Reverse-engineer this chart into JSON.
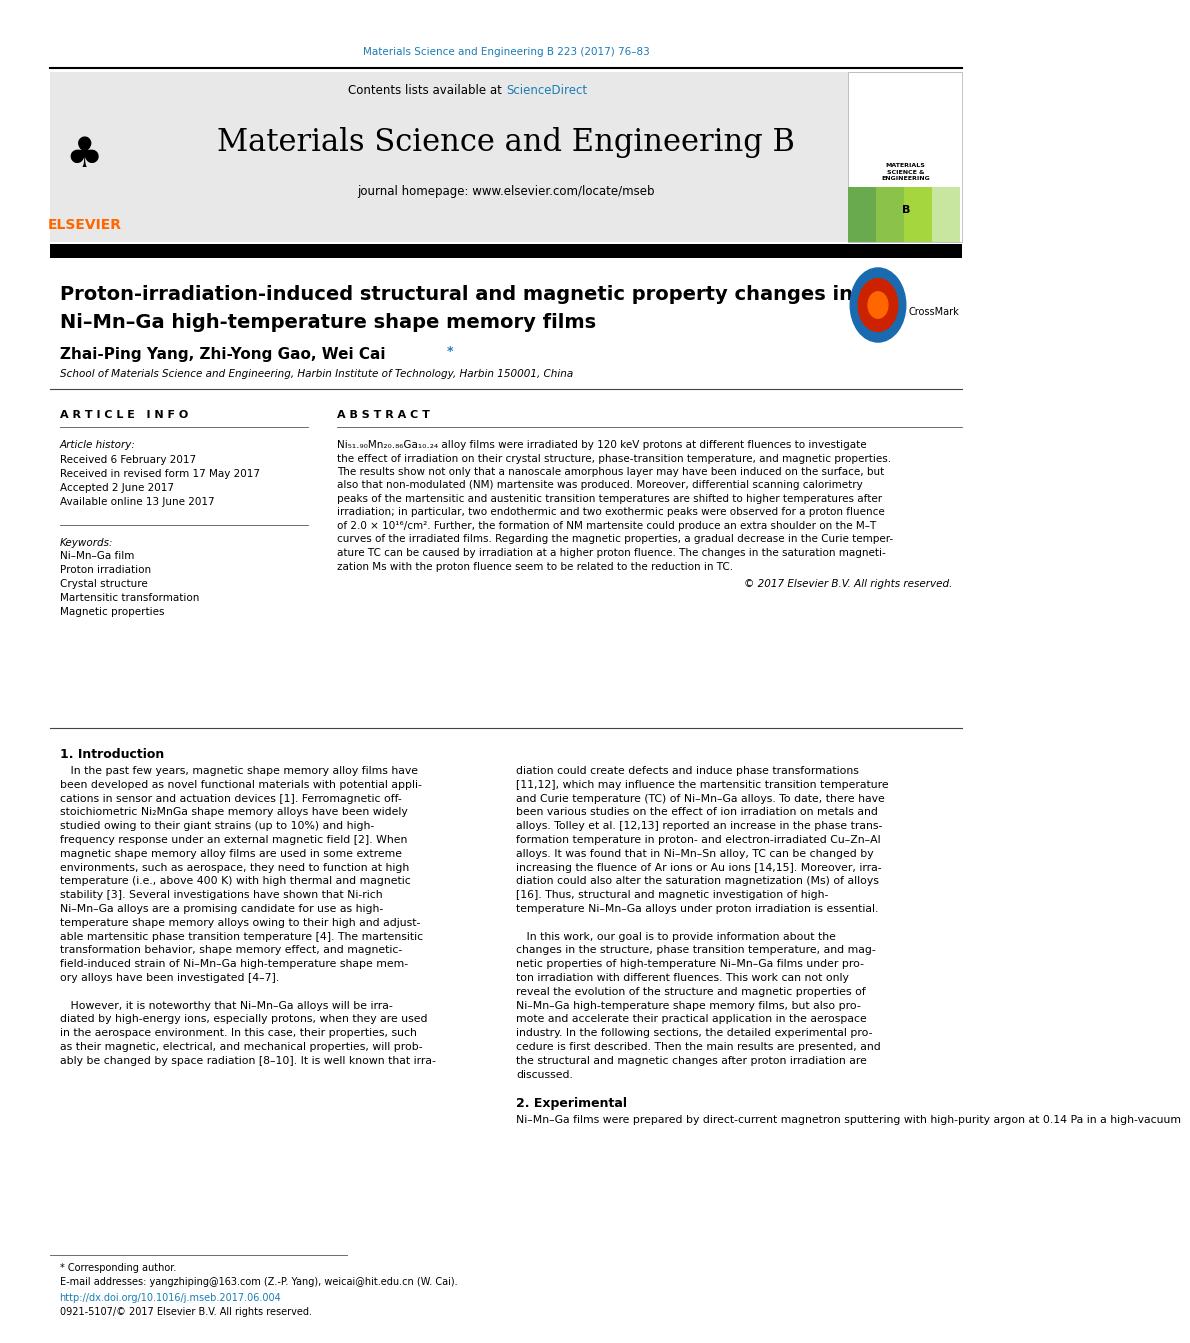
{
  "page_width": 9.92,
  "page_height": 13.23,
  "bg_color": "#ffffff",
  "top_link_text": "Materials Science and Engineering B 223 (2017) 76–83",
  "top_link_color": "#1a7db5",
  "contents_text": "Contents lists available at ",
  "sciencedirect_text": "ScienceDirect",
  "sciencedirect_color": "#1a7db5",
  "journal_name": "Materials Science and Engineering B",
  "journal_homepage": "journal homepage: www.elsevier.com/locate/mseb",
  "header_bg": "#e8e8e8",
  "paper_title_line1": "Proton-irradiation-induced structural and magnetic property changes in",
  "paper_title_line2": "Ni–Mn–Ga high-temperature shape memory films",
  "authors": "Zhai-Ping Yang, Zhi-Yong Gao, Wei Cai",
  "authors_star": "*",
  "affiliation": "School of Materials Science and Engineering, Harbin Institute of Technology, Harbin 150001, China",
  "article_info_header": "A R T I C L E   I N F O",
  "abstract_header": "A B S T R A C T",
  "article_history_label": "Article history:",
  "received_1": "Received 6 February 2017",
  "received_revised": "Received in revised form 17 May 2017",
  "accepted": "Accepted 2 June 2017",
  "available": "Available online 13 June 2017",
  "keywords_label": "Keywords:",
  "keywords": [
    "Ni–Mn–Ga film",
    "Proton irradiation",
    "Crystal structure",
    "Martensitic transformation",
    "Magnetic properties"
  ],
  "abstract_text": "Ni51.90Mn20.86Ga10.24 alloy films were irradiated by 120 keV protons at different fluences to investigate the effect of irradiation on their crystal structure, phase-transition temperature, and magnetic properties. The results show not only that a nanoscale amorphous layer may have been induced on the surface, but also that non-modulated (NM) martensite was produced. Moreover, differential scanning calorimetry peaks of the martensitic and austenitic transition temperatures are shifted to higher temperatures after irradiation; in particular, two endothermic and two exothermic peaks were observed for a proton fluence of 2.0 × 10¹⁶/cm². Further, the formation of NM martensite could produce an extra shoulder on the M–T curves of the irradiated films. Regarding the magnetic properties, a gradual decrease in the Curie temperature TC can be caused by irradiation at a higher proton fluence. The changes in the saturation magnetization Ms with the proton fluence seem to be related to the reduction in TC.",
  "copyright": "© 2017 Elsevier B.V. All rights reserved.",
  "intro_header": "1. Introduction",
  "section2_header": "2. Experimental",
  "section2_text": "Ni–Mn–Ga films were prepared by direct-current magnetron sputtering with high-purity argon at 0.14 Pa in a high-vacuum",
  "footnote_star": "* Corresponding author.",
  "footnote_email": "E-mail addresses: yangzhiping@163.com (Z.-P. Yang), weicai@hit.edu.cn (W. Cai).",
  "footnote_doi": "http://dx.doi.org/10.1016/j.mseb.2017.06.004",
  "footnote_issn": "0921-5107/© 2017 Elsevier B.V. All rights reserved."
}
